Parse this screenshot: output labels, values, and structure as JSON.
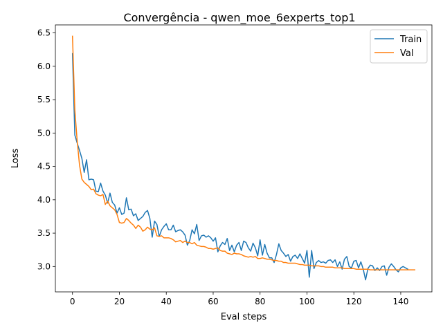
{
  "chart_data": {
    "type": "line",
    "title": "Convergência - qwen_moe_6experts_top1",
    "xlabel": "Eval steps",
    "ylabel": "Loss",
    "xlim": [
      -7.3,
      153.3
    ],
    "ylim": [
      2.62,
      6.62
    ],
    "xticks": [
      0,
      20,
      40,
      60,
      80,
      100,
      120,
      140
    ],
    "yticks": [
      3.0,
      3.5,
      4.0,
      4.5,
      5.0,
      5.5,
      6.0,
      6.5
    ],
    "grid": false,
    "legend_position": "top-right",
    "series": [
      {
        "name": "Train",
        "color": "#1f77b4",
        "values": [
          6.19,
          4.97,
          4.85,
          4.74,
          4.62,
          4.41,
          4.6,
          4.3,
          4.31,
          4.3,
          4.13,
          4.12,
          4.25,
          4.13,
          4.07,
          3.95,
          4.1,
          3.96,
          3.92,
          3.8,
          3.88,
          3.78,
          3.8,
          4.03,
          3.85,
          3.86,
          3.76,
          3.79,
          3.69,
          3.72,
          3.75,
          3.81,
          3.84,
          3.72,
          3.44,
          3.68,
          3.63,
          3.45,
          3.55,
          3.6,
          3.64,
          3.55,
          3.55,
          3.62,
          3.52,
          3.54,
          3.55,
          3.52,
          3.47,
          3.32,
          3.39,
          3.55,
          3.49,
          3.63,
          3.39,
          3.46,
          3.47,
          3.44,
          3.46,
          3.43,
          3.38,
          3.43,
          3.22,
          3.31,
          3.36,
          3.33,
          3.42,
          3.24,
          3.32,
          3.22,
          3.32,
          3.36,
          3.24,
          3.38,
          3.36,
          3.28,
          3.23,
          3.35,
          3.28,
          3.16,
          3.4,
          3.17,
          3.33,
          3.2,
          3.13,
          3.13,
          3.06,
          3.18,
          3.34,
          3.24,
          3.2,
          3.15,
          3.18,
          3.08,
          3.15,
          3.17,
          3.12,
          3.19,
          3.12,
          3.05,
          3.24,
          2.84,
          3.24,
          2.97,
          3.06,
          3.09,
          3.06,
          3.07,
          3.05,
          3.09,
          3.1,
          3.06,
          3.1,
          3.0,
          3.07,
          2.96,
          3.11,
          3.15,
          3.0,
          2.98,
          3.08,
          3.09,
          2.98,
          3.07,
          2.96,
          2.8,
          2.97,
          3.02,
          3.01,
          2.94,
          2.98,
          2.94,
          3.0,
          3.01,
          2.87,
          2.99,
          3.04,
          3.0,
          2.95,
          2.92,
          2.98,
          3.0,
          2.98,
          2.96
        ],
        "x_start": 0,
        "x_step": 1
      },
      {
        "name": "Val",
        "color": "#ff7f0e",
        "values": [
          6.45,
          5.35,
          4.88,
          4.52,
          4.31,
          4.26,
          4.23,
          4.2,
          4.15,
          4.16,
          4.09,
          4.07,
          4.06,
          4.08,
          3.93,
          3.98,
          3.91,
          3.88,
          3.85,
          3.78,
          3.66,
          3.65,
          3.66,
          3.72,
          3.69,
          3.65,
          3.62,
          3.57,
          3.62,
          3.59,
          3.53,
          3.55,
          3.59,
          3.56,
          3.55,
          3.58,
          3.46,
          3.45,
          3.46,
          3.43,
          3.43,
          3.43,
          3.42,
          3.4,
          3.37,
          3.38,
          3.39,
          3.36,
          3.38,
          3.36,
          3.36,
          3.34,
          3.36,
          3.32,
          3.31,
          3.3,
          3.3,
          3.29,
          3.27,
          3.27,
          3.26,
          3.27,
          3.28,
          3.24,
          3.23,
          3.23,
          3.2,
          3.19,
          3.18,
          3.2,
          3.19,
          3.19,
          3.18,
          3.16,
          3.15,
          3.14,
          3.15,
          3.14,
          3.15,
          3.12,
          3.12,
          3.13,
          3.12,
          3.11,
          3.11,
          3.1,
          3.09,
          3.09,
          3.08,
          3.08,
          3.06,
          3.06,
          3.05,
          3.05,
          3.05,
          3.05,
          3.04,
          3.03,
          3.03,
          3.02,
          3.02,
          3.02,
          3.01,
          3.01,
          3.01,
          3.01,
          3.0,
          3.0,
          2.99,
          2.99,
          2.99,
          2.99,
          2.98,
          2.98,
          2.98,
          2.98,
          2.97,
          2.97,
          2.97,
          2.97,
          2.97,
          2.96,
          2.96,
          2.96,
          2.96,
          2.96,
          2.96,
          2.95,
          2.95,
          2.95,
          2.95,
          2.95,
          2.95,
          2.95,
          2.95,
          2.95,
          2.95,
          2.95,
          2.95,
          2.95,
          2.95,
          2.95,
          2.95,
          2.95,
          2.95,
          2.95,
          2.95
        ],
        "x_start": 0,
        "x_step": 1
      }
    ]
  }
}
